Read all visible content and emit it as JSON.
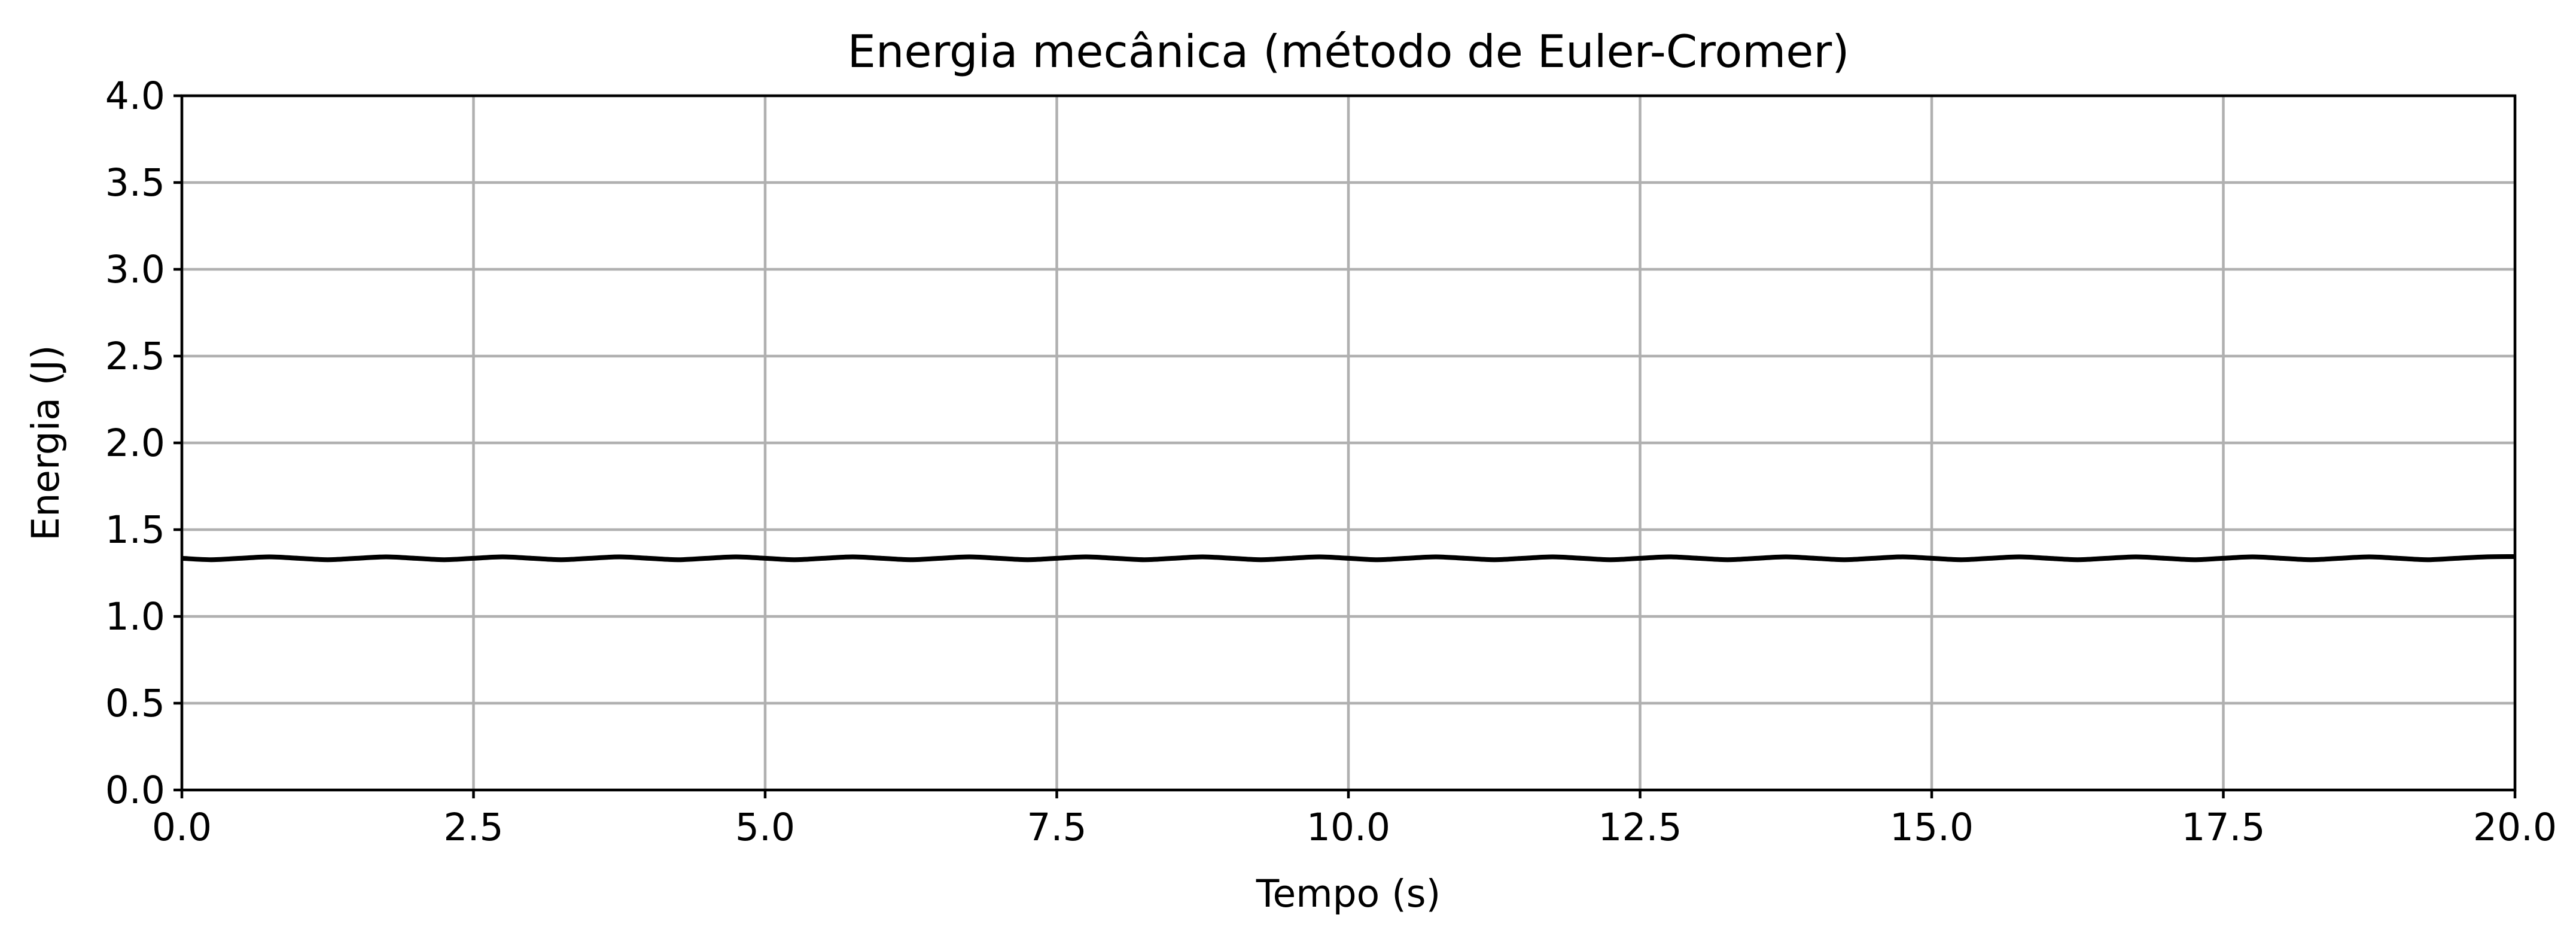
{
  "chart_data": {
    "type": "line",
    "title": "Energia mecânica (método de Euler-Cromer)",
    "xlabel": "Tempo (s)",
    "ylabel": "Energia (J)",
    "xlim": [
      0,
      20
    ],
    "ylim": [
      0,
      4
    ],
    "xticks": [
      "0.0",
      "2.5",
      "5.0",
      "7.5",
      "10.0",
      "12.5",
      "15.0",
      "17.5",
      "20.0"
    ],
    "yticks": [
      "0.0",
      "0.5",
      "1.0",
      "1.5",
      "2.0",
      "2.5",
      "3.0",
      "3.5",
      "4.0"
    ],
    "grid": true,
    "series": [
      {
        "color": "#000000",
        "x": [
          0,
          0.25,
          0.5,
          0.75,
          1.0,
          1.25,
          1.5,
          1.75,
          2.0,
          2.25,
          2.5,
          2.75,
          3.0,
          3.25,
          3.5,
          3.75,
          4.0,
          4.25,
          4.5,
          4.75,
          5.0,
          5.25,
          5.5,
          5.75,
          6.0,
          6.25,
          6.5,
          6.75,
          7.0,
          7.25,
          7.5,
          7.75,
          8.0,
          8.25,
          8.5,
          8.75,
          9.0,
          9.25,
          9.5,
          9.75,
          10.0,
          10.25,
          10.5,
          10.75,
          11.0,
          11.25,
          11.5,
          11.75,
          12.0,
          12.25,
          12.5,
          12.75,
          13.0,
          13.25,
          13.5,
          13.75,
          14.0,
          14.25,
          14.5,
          14.75,
          15.0,
          15.25,
          15.5,
          15.75,
          16.0,
          16.25,
          16.5,
          16.75,
          17.0,
          17.25,
          17.5,
          17.75,
          18.0,
          18.25,
          18.5,
          18.75,
          19.0,
          19.25,
          19.5,
          19.75,
          20.0
        ],
        "values": [
          1.335,
          1.327,
          1.335,
          1.343,
          1.335,
          1.327,
          1.335,
          1.343,
          1.335,
          1.327,
          1.335,
          1.343,
          1.335,
          1.327,
          1.335,
          1.343,
          1.335,
          1.327,
          1.335,
          1.343,
          1.335,
          1.327,
          1.335,
          1.343,
          1.335,
          1.327,
          1.335,
          1.343,
          1.335,
          1.327,
          1.335,
          1.343,
          1.335,
          1.327,
          1.335,
          1.343,
          1.335,
          1.327,
          1.335,
          1.343,
          1.335,
          1.327,
          1.335,
          1.343,
          1.335,
          1.327,
          1.335,
          1.343,
          1.335,
          1.327,
          1.335,
          1.343,
          1.335,
          1.327,
          1.335,
          1.343,
          1.335,
          1.327,
          1.335,
          1.343,
          1.335,
          1.327,
          1.335,
          1.343,
          1.335,
          1.327,
          1.335,
          1.343,
          1.335,
          1.327,
          1.335,
          1.343,
          1.335,
          1.327,
          1.335,
          1.343,
          1.335,
          1.327,
          1.335,
          1.343,
          1.345
        ]
      }
    ]
  }
}
